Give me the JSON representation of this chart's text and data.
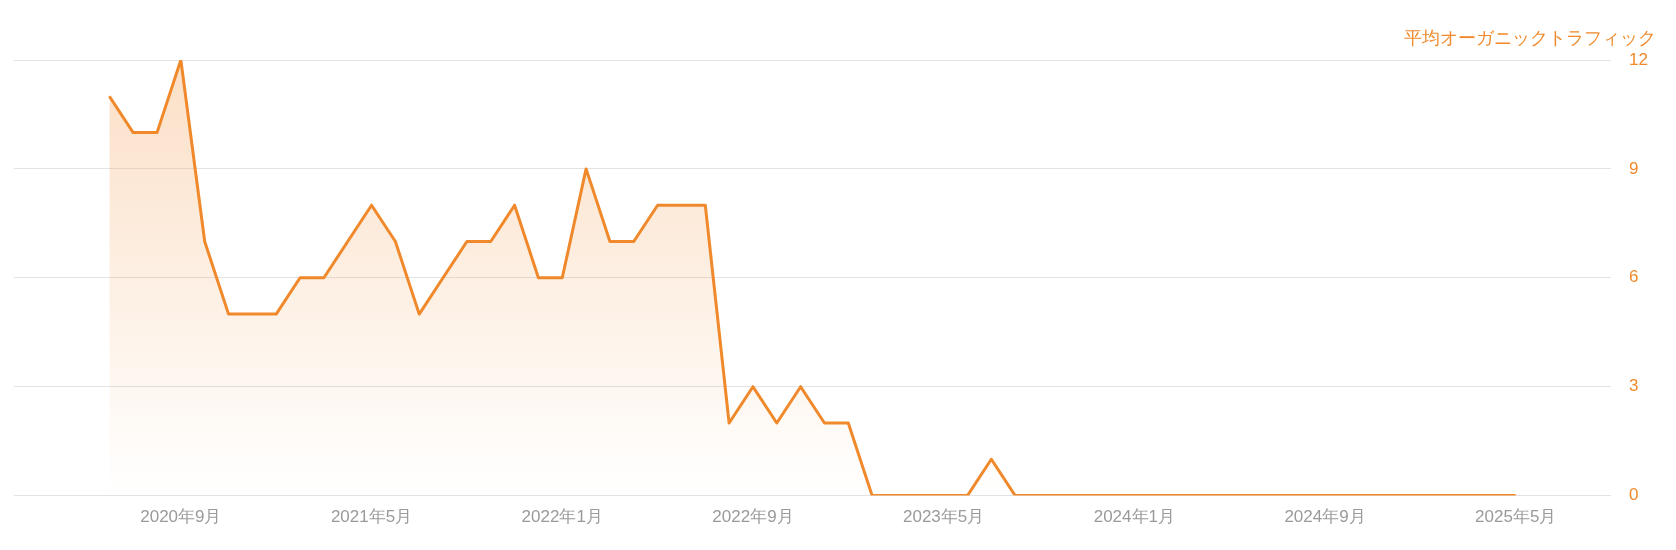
{
  "chart_data": {
    "type": "area",
    "ylabel": "平均オーガニックトラフィック",
    "x": [
      "2020-06",
      "2020-07",
      "2020-08",
      "2020-09",
      "2020-10",
      "2020-11",
      "2020-12",
      "2021-01",
      "2021-02",
      "2021-03",
      "2021-04",
      "2021-05",
      "2021-06",
      "2021-07",
      "2021-08",
      "2021-09",
      "2021-10",
      "2021-11",
      "2021-12",
      "2022-01",
      "2022-02",
      "2022-03",
      "2022-04",
      "2022-05",
      "2022-06",
      "2022-07",
      "2022-08",
      "2022-09",
      "2022-10",
      "2022-11",
      "2022-12",
      "2023-01",
      "2023-02",
      "2023-03",
      "2023-04",
      "2023-05",
      "2023-06",
      "2023-07",
      "2023-08",
      "2023-09",
      "2023-10",
      "2023-11",
      "2023-12",
      "2024-01",
      "2024-02",
      "2024-03",
      "2024-04",
      "2024-05",
      "2024-06",
      "2024-07",
      "2024-08",
      "2024-09",
      "2024-10",
      "2024-11",
      "2024-12",
      "2025-01",
      "2025-02",
      "2025-03",
      "2025-04",
      "2025-05"
    ],
    "series": [
      {
        "color": "#f0892b",
        "values": [
          11,
          10,
          10,
          12,
          7,
          5,
          5,
          5,
          6,
          6,
          7,
          8,
          7,
          5,
          6,
          7,
          7,
          8,
          6,
          6,
          9,
          7,
          7,
          8,
          8,
          8,
          2,
          3,
          2,
          3,
          2,
          2,
          0,
          0,
          0,
          0,
          0,
          1,
          0,
          0,
          0,
          0,
          0,
          0,
          0,
          0,
          0,
          0,
          0,
          0,
          0,
          0,
          0,
          0,
          0,
          0,
          0,
          0,
          0,
          0
        ]
      }
    ],
    "xlim": [
      "2020-02",
      "2025-09"
    ],
    "xticks": [
      {
        "value": "2020-09",
        "label": "2020年9月"
      },
      {
        "value": "2021-05",
        "label": "2021年5月"
      },
      {
        "value": "2022-01",
        "label": "2022年1月"
      },
      {
        "value": "2022-09",
        "label": "2022年9月"
      },
      {
        "value": "2023-05",
        "label": "2023年5月"
      },
      {
        "value": "2024-01",
        "label": "2024年1月"
      },
      {
        "value": "2024-09",
        "label": "2024年9月"
      },
      {
        "value": "2025-05",
        "label": "2025年5月"
      }
    ],
    "ylim": [
      0,
      12
    ],
    "yticks": [
      0,
      3,
      6,
      9,
      12
    ],
    "grid": "y",
    "legend": false,
    "marker": "none",
    "line_style": "solid"
  }
}
